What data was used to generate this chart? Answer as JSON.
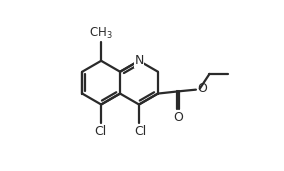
{
  "bg_color": "#ffffff",
  "line_color": "#2a2a2a",
  "line_width": 1.6,
  "font_size": 9.0,
  "figsize": [
    2.84,
    1.71
  ],
  "dpi": 100,
  "xlim": [
    0.0,
    1.0
  ],
  "ylim": [
    0.0,
    1.0
  ]
}
